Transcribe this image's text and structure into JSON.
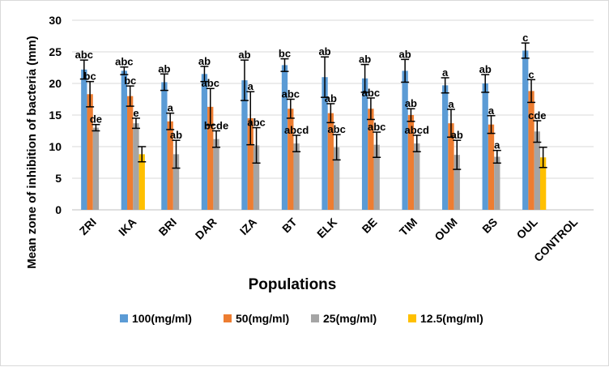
{
  "chart_data": {
    "type": "bar",
    "title": "",
    "xlabel": "Populations",
    "ylabel": "Mean zone of inhibition of bacteria (mm)",
    "ylim": [
      0,
      30
    ],
    "yticks": [
      "0",
      "5",
      "10",
      "15",
      "20",
      "25",
      "30"
    ],
    "grid": true,
    "legend_position": "bottom",
    "categories": [
      "ZRI",
      "IKA",
      "BRI",
      "DAR",
      "IZA",
      "BT",
      "ELK",
      "BE",
      "TIM",
      "OUM",
      "BS",
      "OUL",
      "CONTROL"
    ],
    "series": [
      {
        "name": "100(mg/ml)",
        "color": "#5b9bd5",
        "values": [
          22.2,
          22.0,
          20.2,
          21.5,
          20.5,
          22.9,
          21.0,
          20.8,
          22.0,
          19.7,
          20.0,
          25.2,
          0
        ],
        "errors": [
          1.5,
          0.6,
          1.3,
          1.2,
          3.2,
          1.0,
          3.2,
          2.2,
          1.8,
          1.2,
          1.4,
          1.2,
          0
        ],
        "labels": [
          "abc",
          "abc",
          "ab",
          "ab",
          "ab",
          "bc",
          "ab",
          "ab",
          "ab",
          "a",
          "ab",
          "c",
          ""
        ]
      },
      {
        "name": "50(mg/ml)",
        "color": "#ed7d31",
        "values": [
          18.3,
          18.0,
          14.0,
          16.3,
          14.5,
          16.0,
          15.3,
          16.0,
          15.0,
          13.7,
          13.5,
          18.8,
          0
        ],
        "errors": [
          2.0,
          1.6,
          1.3,
          2.9,
          4.2,
          1.5,
          1.5,
          1.7,
          1.0,
          2.2,
          1.4,
          1.8,
          0
        ],
        "labels": [
          "bc",
          "bc",
          "a",
          "abc",
          "a",
          "abc",
          "ab",
          "abc",
          "ab",
          "a",
          "a",
          "c",
          ""
        ]
      },
      {
        "name": "25(mg/ml)",
        "color": "#a5a5a5",
        "values": [
          13.0,
          13.7,
          8.8,
          11.2,
          10.2,
          10.5,
          9.9,
          10.3,
          10.5,
          8.7,
          8.4,
          12.4,
          0
        ],
        "errors": [
          0.5,
          0.8,
          2.2,
          1.3,
          2.8,
          1.3,
          2.0,
          2.0,
          1.3,
          2.3,
          1.0,
          1.7,
          0
        ],
        "labels": [
          "de",
          "e",
          "ab",
          "bcde",
          "abc",
          "abcd",
          "abc",
          "abc",
          "abcd",
          "ab",
          "a",
          "cde",
          ""
        ]
      },
      {
        "name": "12.5(mg/ml)",
        "color": "#ffc000",
        "values": [
          0,
          8.8,
          0,
          0,
          0,
          0,
          0,
          0,
          0,
          0,
          0,
          8.3,
          0
        ],
        "errors": [
          0,
          1.2,
          0,
          0,
          0,
          0,
          0,
          0,
          0,
          0,
          0,
          1.6,
          0
        ],
        "labels": [
          "",
          "",
          "",
          "",
          "",
          "",
          "",
          "",
          "",
          "",
          "",
          "",
          ""
        ]
      }
    ]
  }
}
